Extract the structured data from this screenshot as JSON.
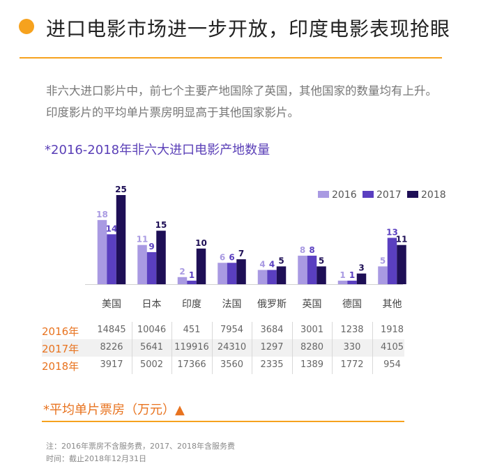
{
  "header": {
    "title": "进口电影市场进一步开放，印度电影表现抢眼",
    "intro": [
      "非六大进口影片中，前七个主要产地国除了英国，其他国家的数量均有上升。",
      "印度影片的平均单片票房明显高于其他国家影片。"
    ]
  },
  "chart_data": {
    "type": "bar",
    "title": "*2016-2018年非六大进口电影产地数量",
    "categories": [
      "美国",
      "日本",
      "印度",
      "法国",
      "俄罗斯",
      "英国",
      "德国",
      "其他"
    ],
    "series": [
      {
        "name": "2016",
        "color": "#a99ae2",
        "values": [
          18,
          11,
          2,
          6,
          4,
          8,
          1,
          5
        ]
      },
      {
        "name": "2017",
        "color": "#5a3fc0",
        "values": [
          14,
          9,
          1,
          6,
          4,
          8,
          1,
          13
        ]
      },
      {
        "name": "2018",
        "color": "#1e0f56",
        "values": [
          25,
          15,
          10,
          7,
          5,
          5,
          3,
          11
        ]
      }
    ],
    "ylim": [
      0,
      25
    ],
    "legend": "top-right",
    "grid": false,
    "xlabel": "",
    "ylabel": ""
  },
  "box_office": {
    "caption": "*平均单片票房（万元）▲",
    "rows": [
      {
        "year": "2016年",
        "values": [
          "14845",
          "10046",
          "451",
          "7954",
          "3684",
          "3001",
          "1238",
          "1918"
        ]
      },
      {
        "year": "2017年",
        "values": [
          "8226",
          "5641",
          "119916",
          "24310",
          "1297",
          "8280",
          "330",
          "4105"
        ]
      },
      {
        "year": "2018年",
        "values": [
          "3917",
          "5002",
          "17366",
          "3560",
          "2335",
          "1389",
          "1772",
          "954"
        ]
      }
    ]
  },
  "notes": [
    "注：2016年票房不含服务费，2017、2018年含服务费",
    "时间：截止2018年12月31日"
  ],
  "colors": {
    "accent": "#f6a21e",
    "highlight": "#e8731f",
    "title_purple": "#5a3fb7"
  }
}
